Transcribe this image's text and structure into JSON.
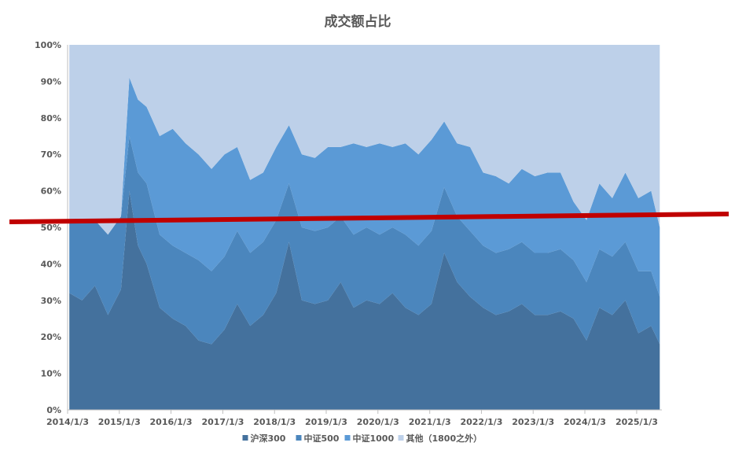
{
  "chart_data": {
    "type": "area",
    "stacked": true,
    "percent": true,
    "title": "成交额占比",
    "ylim": [
      0,
      100
    ],
    "y_ticks": [
      "0%",
      "10%",
      "20%",
      "30%",
      "40%",
      "50%",
      "60%",
      "70%",
      "80%",
      "90%",
      "100%"
    ],
    "x_ticks": [
      "2014/1/3",
      "2015/1/3",
      "2016/1/3",
      "2017/1/3",
      "2018/1/3",
      "2019/1/3",
      "2020/1/3",
      "2021/1/3",
      "2022/1/3",
      "2023/1/3",
      "2024/1/3",
      "2025/1/3"
    ],
    "x_start": "2014-01-03",
    "x_end": "2025-06-30",
    "legend_position": "bottom",
    "grid": false,
    "x": [
      "2014-01",
      "2014-04",
      "2014-07",
      "2014-10",
      "2015-01",
      "2015-03",
      "2015-05",
      "2015-07",
      "2015-10",
      "2016-01",
      "2016-04",
      "2016-07",
      "2016-10",
      "2017-01",
      "2017-04",
      "2017-07",
      "2017-10",
      "2018-01",
      "2018-04",
      "2018-07",
      "2018-10",
      "2019-01",
      "2019-04",
      "2019-07",
      "2019-10",
      "2020-01",
      "2020-04",
      "2020-07",
      "2020-10",
      "2021-01",
      "2021-04",
      "2021-07",
      "2021-10",
      "2022-01",
      "2022-04",
      "2022-07",
      "2022-10",
      "2023-01",
      "2023-04",
      "2023-07",
      "2023-10",
      "2024-01",
      "2024-04",
      "2024-07",
      "2024-10",
      "2025-01",
      "2025-04",
      "2025-06"
    ],
    "series": [
      {
        "name": "沪深300",
        "color": "#44719d",
        "values": [
          32,
          30,
          34,
          26,
          33,
          60,
          45,
          40,
          28,
          25,
          23,
          19,
          18,
          22,
          29,
          23,
          26,
          32,
          46,
          30,
          29,
          30,
          35,
          28,
          30,
          29,
          32,
          28,
          26,
          29,
          43,
          35,
          31,
          28,
          26,
          27,
          29,
          26,
          26,
          27,
          25,
          19,
          28,
          26,
          30,
          21,
          23,
          18
        ]
      },
      {
        "name": "中证500",
        "color": "#4b86bd",
        "values": [
          20,
          22,
          18,
          22,
          20,
          15,
          20,
          22,
          20,
          20,
          20,
          22,
          20,
          20,
          20,
          20,
          20,
          20,
          16,
          20,
          20,
          20,
          18,
          20,
          20,
          19,
          18,
          20,
          19,
          20,
          18,
          18,
          18,
          17,
          17,
          17,
          17,
          17,
          17,
          17,
          16,
          16,
          16,
          16,
          16,
          17,
          15,
          13
        ]
      },
      {
        "name": "中证1000",
        "color": "#5b9ad6",
        "values": [
          0,
          0,
          0,
          0,
          0,
          16,
          20,
          21,
          27,
          32,
          30,
          29,
          28,
          28,
          23,
          20,
          19,
          20,
          16,
          20,
          20,
          22,
          19,
          25,
          22,
          25,
          22,
          25,
          25,
          25,
          18,
          20,
          23,
          20,
          21,
          18,
          20,
          21,
          22,
          21,
          16,
          17,
          18,
          16,
          19,
          20,
          22,
          19
        ]
      },
      {
        "name": "其他（1800之外）",
        "color": "#bdd0e9",
        "values": [
          48,
          48,
          48,
          52,
          47,
          9,
          15,
          17,
          25,
          23,
          27,
          30,
          34,
          30,
          28,
          37,
          35,
          28,
          22,
          30,
          31,
          28,
          28,
          27,
          28,
          27,
          28,
          27,
          30,
          26,
          21,
          27,
          28,
          35,
          36,
          38,
          34,
          36,
          35,
          35,
          43,
          48,
          38,
          42,
          35,
          42,
          40,
          50
        ]
      }
    ],
    "annotation_line": {
      "color": "#c00000"
    }
  }
}
